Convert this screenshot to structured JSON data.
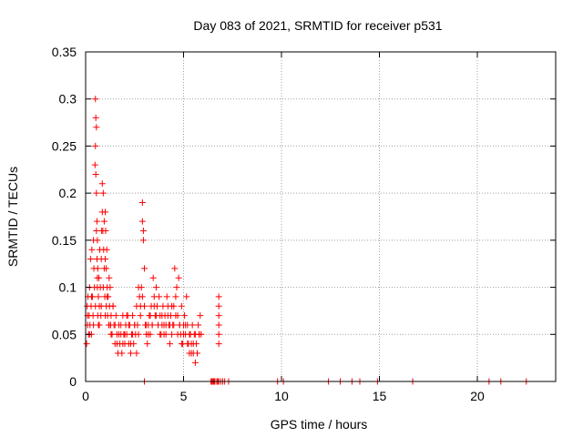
{
  "chart_data": {
    "type": "scatter",
    "title": "Day 083 of 2021, SRMTID for receiver p531",
    "xlabel": "GPS time / hours",
    "ylabel": "SRMTID / TECUs",
    "xlim": [
      0,
      24
    ],
    "ylim": [
      0,
      0.35
    ],
    "xticks": [
      0,
      5,
      10,
      15,
      20
    ],
    "xtick_labels": [
      "0",
      "5",
      "10",
      "15",
      "20"
    ],
    "yticks": [
      0,
      0.05,
      0.1,
      0.15,
      0.2,
      0.25,
      0.3,
      0.35
    ],
    "ytick_labels": [
      "0",
      "0.05",
      "0.1",
      "0.15",
      "0.2",
      "0.25",
      "0.3",
      "0.35"
    ],
    "grid": true,
    "marker": "+",
    "series": [
      {
        "name": "SRMTID",
        "color": "#ff0000",
        "x": [
          0.05,
          0.08,
          0.1,
          0.12,
          0.15,
          0.18,
          0.2,
          0.22,
          0.25,
          0.28,
          0.3,
          0.32,
          0.35,
          0.38,
          0.4,
          0.42,
          0.45,
          0.48,
          0.5,
          0.5,
          0.52,
          0.52,
          0.55,
          0.55,
          0.55,
          0.58,
          0.58,
          0.6,
          0.6,
          0.62,
          0.62,
          0.65,
          0.65,
          0.68,
          0.7,
          0.72,
          0.75,
          0.78,
          0.8,
          0.82,
          0.85,
          0.85,
          0.88,
          0.9,
          0.92,
          0.95,
          0.95,
          0.98,
          1.0,
          1.0,
          1.02,
          1.05,
          1.05,
          1.08,
          1.1,
          1.12,
          1.15,
          1.18,
          1.2,
          1.22,
          1.25,
          1.28,
          1.3,
          1.35,
          1.4,
          1.45,
          1.5,
          1.55,
          1.6,
          1.65,
          1.7,
          1.75,
          1.8,
          1.85,
          1.9,
          1.95,
          2.0,
          2.05,
          2.1,
          2.15,
          2.2,
          2.25,
          2.3,
          2.35,
          2.4,
          2.45,
          2.5,
          2.55,
          2.6,
          2.65,
          2.7,
          2.75,
          2.8,
          2.85,
          2.9,
          2.9,
          2.95,
          2.95,
          3.0,
          3.0,
          3.05,
          3.1,
          3.15,
          3.2,
          3.25,
          3.3,
          3.35,
          3.4,
          3.45,
          3.5,
          3.55,
          3.6,
          3.65,
          3.7,
          3.75,
          3.8,
          3.85,
          3.9,
          3.95,
          4.0,
          4.05,
          4.1,
          4.15,
          4.2,
          4.25,
          4.3,
          4.35,
          4.4,
          4.45,
          4.5,
          4.55,
          4.6,
          4.65,
          4.7,
          4.75,
          4.8,
          4.85,
          4.9,
          4.95,
          5.0,
          5.05,
          5.1,
          5.15,
          5.2,
          5.25,
          5.3,
          5.35,
          5.4,
          5.45,
          5.5,
          5.55,
          5.6,
          5.65,
          5.7,
          5.75,
          5.8,
          5.85,
          5.9,
          6.4,
          6.45,
          6.5,
          6.5,
          6.55,
          6.55,
          6.6,
          6.7,
          6.75,
          6.8,
          6.9,
          7.0,
          7.1,
          7.3,
          9.8,
          10.1,
          12.4,
          13.0,
          13.6,
          14.0,
          14.9,
          16.7,
          20.6,
          21.2,
          22.5,
          0.1,
          0.2,
          0.3,
          0.4,
          0.5,
          0.6,
          0.7,
          0.8,
          0.9,
          1.0,
          1.1,
          1.2,
          1.3,
          1.4,
          1.5,
          1.6,
          1.7,
          1.8,
          1.9,
          2.0,
          2.1,
          2.2,
          2.3,
          2.4,
          2.5,
          2.6,
          2.7,
          2.8,
          2.9,
          3.0,
          3.1,
          3.2,
          3.3,
          3.4,
          3.5,
          3.6,
          3.7,
          3.8,
          3.9,
          4.0,
          4.1,
          4.2,
          4.3,
          4.4,
          4.5,
          4.6,
          4.7,
          4.8,
          4.9,
          5.0,
          5.1,
          5.2,
          5.3,
          5.4,
          5.5,
          5.6,
          5.7,
          5.8,
          6.8,
          6.8,
          6.8,
          6.8,
          6.8,
          6.8
        ],
        "y": [
          0.04,
          0.08,
          0.06,
          0.09,
          0.05,
          0.07,
          0.1,
          0.06,
          0.13,
          0.08,
          0.05,
          0.14,
          0.09,
          0.07,
          0.15,
          0.12,
          0.1,
          0.23,
          0.3,
          0.25,
          0.28,
          0.22,
          0.27,
          0.2,
          0.16,
          0.17,
          0.13,
          0.15,
          0.1,
          0.12,
          0.07,
          0.09,
          0.06,
          0.11,
          0.08,
          0.14,
          0.1,
          0.07,
          0.13,
          0.16,
          0.18,
          0.21,
          0.16,
          0.2,
          0.14,
          0.17,
          0.12,
          0.09,
          0.18,
          0.13,
          0.16,
          0.12,
          0.08,
          0.14,
          0.1,
          0.07,
          0.09,
          0.06,
          0.11,
          0.08,
          0.1,
          0.06,
          0.07,
          0.05,
          0.08,
          0.06,
          0.04,
          0.07,
          0.05,
          0.03,
          0.06,
          0.04,
          0.05,
          0.03,
          0.07,
          0.05,
          0.04,
          0.06,
          0.05,
          0.07,
          0.04,
          0.06,
          0.03,
          0.05,
          0.07,
          0.04,
          0.06,
          0.05,
          0.08,
          0.06,
          0.1,
          0.09,
          0.08,
          0.1,
          0.19,
          0.17,
          0.15,
          0.16,
          0.12,
          0.08,
          0.06,
          0.05,
          0.04,
          0.06,
          0.07,
          0.05,
          0.08,
          0.06,
          0.11,
          0.09,
          0.07,
          0.1,
          0.08,
          0.06,
          0.09,
          0.07,
          0.05,
          0.06,
          0.08,
          0.05,
          0.07,
          0.06,
          0.09,
          0.08,
          0.06,
          0.04,
          0.07,
          0.05,
          0.06,
          0.08,
          0.12,
          0.09,
          0.1,
          0.07,
          0.11,
          0.06,
          0.05,
          0.08,
          0.04,
          0.06,
          0.07,
          0.05,
          0.09,
          0.06,
          0.04,
          0.03,
          0.05,
          0.04,
          0.06,
          0.03,
          0.05,
          0.02,
          0.04,
          0.03,
          0.06,
          0.05,
          0.07,
          0.05,
          0.0,
          0.0,
          0.0,
          0.0,
          0.0,
          0.0,
          0.0,
          0.0,
          0.0,
          0.0,
          0.0,
          0.0,
          0.0,
          0.0,
          0.0,
          0.0,
          0.0,
          0.0,
          0.0,
          0.0,
          0.0,
          0.0,
          0.0,
          0.0,
          0.0,
          0.07,
          0.05,
          0.09,
          0.06,
          0.08,
          0.11,
          0.06,
          0.08,
          0.1,
          0.07,
          0.09,
          0.06,
          0.05,
          0.08,
          0.06,
          0.04,
          0.05,
          0.06,
          0.04,
          0.05,
          0.07,
          0.06,
          0.04,
          0.05,
          0.06,
          0.03,
          0.05,
          0.07,
          0.09,
          0.0,
          0.06,
          0.05,
          0.07,
          0.06,
          0.08,
          0.07,
          0.06,
          0.05,
          0.07,
          0.06,
          0.05,
          0.07,
          0.06,
          0.08,
          0.06,
          0.07,
          0.05,
          0.06,
          0.04,
          0.05,
          0.06,
          0.04,
          0.05,
          0.03,
          0.04,
          0.05,
          0.03,
          0.05,
          0.09,
          0.08,
          0.06,
          0.05,
          0.04,
          0.07
        ]
      }
    ]
  }
}
